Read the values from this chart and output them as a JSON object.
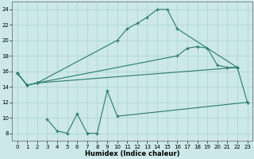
{
  "xlabel": "Humidex (Indice chaleur)",
  "x_ticks": [
    0,
    1,
    2,
    3,
    4,
    5,
    6,
    7,
    8,
    9,
    10,
    11,
    12,
    13,
    14,
    15,
    16,
    17,
    18,
    19,
    20,
    21,
    22,
    23
  ],
  "line_color": "#2a7a6a",
  "background_color": "#cce8e8",
  "grid_color": "#aad2d2",
  "ylim": [
    7,
    25
  ],
  "xlim": [
    -0.5,
    23.5
  ],
  "yticks": [
    8,
    10,
    12,
    14,
    16,
    18,
    20,
    22,
    24
  ],
  "line1_x": [
    0,
    1,
    2,
    10,
    11,
    12,
    13,
    14,
    15,
    16,
    22
  ],
  "line1_y": [
    15.8,
    14.2,
    14.5,
    20.0,
    21.5,
    22.2,
    23.0,
    24.0,
    24.0,
    21.5,
    16.5
  ],
  "line2_x": [
    0,
    1,
    2,
    16,
    17,
    18,
    19,
    20,
    21,
    22
  ],
  "line2_y": [
    15.8,
    14.2,
    14.5,
    18.0,
    19.0,
    19.2,
    19.0,
    16.8,
    16.5,
    16.5
  ],
  "line3_x": [
    0,
    1,
    2,
    22,
    23
  ],
  "line3_y": [
    15.8,
    14.2,
    14.5,
    16.5,
    12.0
  ],
  "line4_x": [
    3,
    4,
    5,
    6,
    7,
    8,
    9,
    10,
    23
  ],
  "line4_y": [
    9.8,
    8.3,
    8.0,
    10.5,
    8.0,
    8.0,
    13.5,
    10.2,
    12.0
  ]
}
